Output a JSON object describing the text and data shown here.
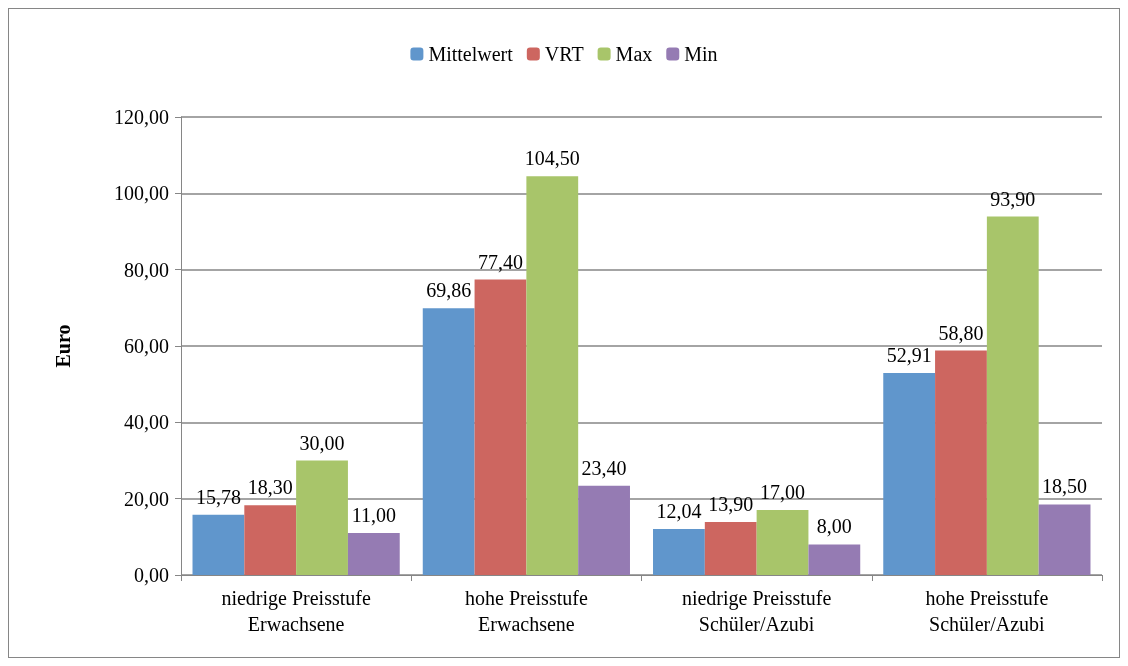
{
  "chart_data": {
    "type": "bar",
    "ylabel": "Euro",
    "categories": [
      "niedrige Preisstufe\nErwachsene",
      "hohe Preisstufe\nErwachsene",
      "niedrige Preisstufe\nSchüler/Azubi",
      "hohe Preisstufe\nSchüler/Azubi"
    ],
    "series": [
      {
        "name": "Mittelwert",
        "color": "#6096cc",
        "values": [
          15.78,
          69.86,
          12.04,
          52.91
        ],
        "value_labels": [
          "15,78",
          "69,86",
          "12,04",
          "52,91"
        ]
      },
      {
        "name": "VRT",
        "color": "#cd6660",
        "values": [
          18.3,
          77.4,
          13.9,
          58.8
        ],
        "value_labels": [
          "18,30",
          "77,40",
          "13,90",
          "58,80"
        ]
      },
      {
        "name": "Max",
        "color": "#a8c56a",
        "values": [
          30,
          104.5,
          17,
          93.9
        ],
        "value_labels": [
          "30,00",
          "104,50",
          "17,00",
          "93,90"
        ]
      },
      {
        "name": "Min",
        "color": "#957bb3",
        "values": [
          11,
          23.4,
          8,
          18.5
        ],
        "value_labels": [
          "11,00",
          "23,40",
          "8,00",
          "18,50"
        ]
      }
    ],
    "ylim": [
      0,
      120
    ],
    "yticks": [
      {
        "value": 0,
        "label": "0,00"
      },
      {
        "value": 20,
        "label": "20,00"
      },
      {
        "value": 40,
        "label": "40,00"
      },
      {
        "value": 60,
        "label": "60,00"
      },
      {
        "value": 80,
        "label": "80,00"
      },
      {
        "value": 100,
        "label": "100,00"
      },
      {
        "value": 120,
        "label": "120,00"
      }
    ],
    "grid": "y",
    "legend": "top"
  }
}
